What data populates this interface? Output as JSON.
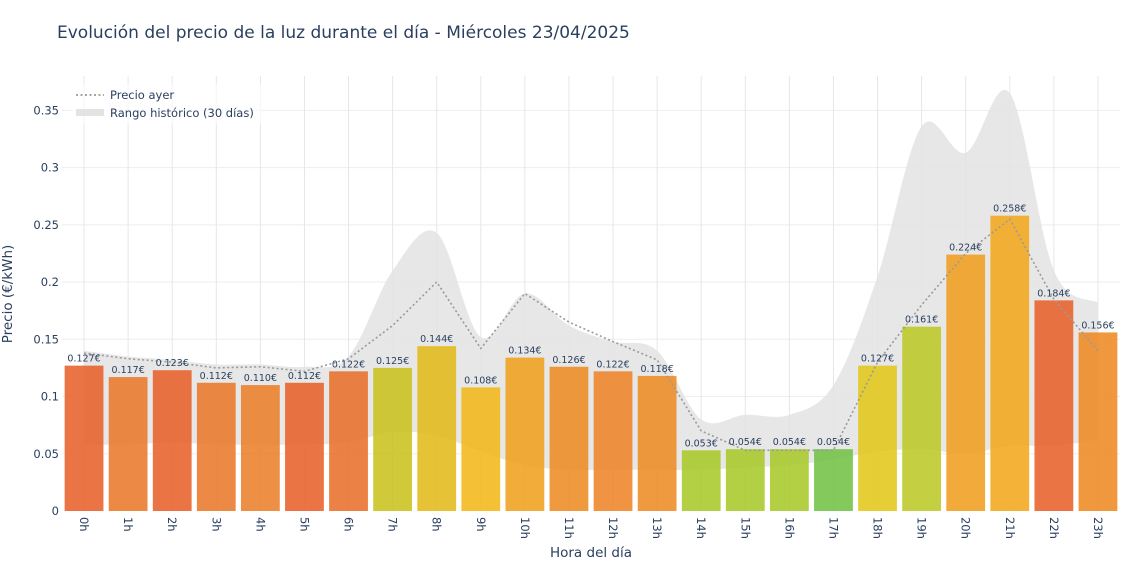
{
  "chart_data": {
    "type": "bar",
    "title": "Evolución del precio de la luz durante el día - Miércoles 23/04/2025",
    "xlabel": "Hora del día",
    "ylabel": "Precio (€/kWh)",
    "ylim": [
      0,
      0.38
    ],
    "yticks": [
      0,
      0.05,
      0.1,
      0.15,
      0.2,
      0.25,
      0.3,
      0.35
    ],
    "ytick_labels": [
      "0",
      "0.05",
      "0.1",
      "0.15",
      "0.2",
      "0.25",
      "0.3",
      "0.35"
    ],
    "grid": true,
    "legend_position": "top-left",
    "categories": [
      "0h",
      "1h",
      "2h",
      "3h",
      "4h",
      "5h",
      "6h",
      "7h",
      "8h",
      "9h",
      "10h",
      "11h",
      "12h",
      "13h",
      "14h",
      "15h",
      "16h",
      "17h",
      "18h",
      "19h",
      "20h",
      "21h",
      "22h",
      "23h"
    ],
    "values": [
      0.127,
      0.117,
      0.123,
      0.112,
      0.11,
      0.112,
      0.122,
      0.125,
      0.144,
      0.108,
      0.134,
      0.126,
      0.122,
      0.118,
      0.053,
      0.054,
      0.054,
      0.054,
      0.127,
      0.161,
      0.224,
      0.258,
      0.184,
      0.156
    ],
    "value_labels": [
      "0.127€",
      "0.117€",
      "0.123€",
      "0.112€",
      "0.110€",
      "0.112€",
      "0.122€",
      "0.125€",
      "0.144€",
      "0.108€",
      "0.134€",
      "0.126€",
      "0.122€",
      "0.118€",
      "0.053€",
      "0.054€",
      "0.054€",
      "0.054€",
      "0.127€",
      "0.161€",
      "0.224€",
      "0.258€",
      "0.184€",
      "0.156€"
    ],
    "bar_colors": [
      "#e8612b",
      "#e97a2b",
      "#e8612b",
      "#e97a2b",
      "#ea7f2a",
      "#e8612b",
      "#e9702b",
      "#c9c21e",
      "#e2bb1a",
      "#f2b81a",
      "#f0a01f",
      "#ee8c25",
      "#ee8428",
      "#ee8c25",
      "#a8c82a",
      "#a8c82a",
      "#a8c82a",
      "#72c144",
      "#e2c71a",
      "#bcc928",
      "#f09e1f",
      "#f3a91c",
      "#e8612b",
      "#ee8a22"
    ],
    "series": [
      {
        "name": "Precio ayer",
        "style": "dotted-line",
        "color": "#9a9a9a",
        "values": [
          0.138,
          0.133,
          0.13,
          0.125,
          0.126,
          0.122,
          0.133,
          0.162,
          0.2,
          0.142,
          0.19,
          0.165,
          0.148,
          0.132,
          0.07,
          0.053,
          0.053,
          0.053,
          0.13,
          0.18,
          0.225,
          0.255,
          0.185,
          0.14
        ]
      },
      {
        "name": "Rango histórico (30 días)",
        "style": "band",
        "color": "#e3e3e3",
        "upper": [
          0.14,
          0.135,
          0.132,
          0.128,
          0.128,
          0.126,
          0.135,
          0.21,
          0.243,
          0.152,
          0.19,
          0.162,
          0.148,
          0.14,
          0.08,
          0.084,
          0.084,
          0.11,
          0.205,
          0.336,
          0.313,
          0.365,
          0.21,
          0.182
        ],
        "lower": [
          0.058,
          0.058,
          0.06,
          0.058,
          0.058,
          0.058,
          0.06,
          0.069,
          0.066,
          0.052,
          0.04,
          0.036,
          0.036,
          0.036,
          0.036,
          0.038,
          0.04,
          0.045,
          0.052,
          0.054,
          0.05,
          0.057,
          0.057,
          0.062
        ]
      }
    ]
  }
}
